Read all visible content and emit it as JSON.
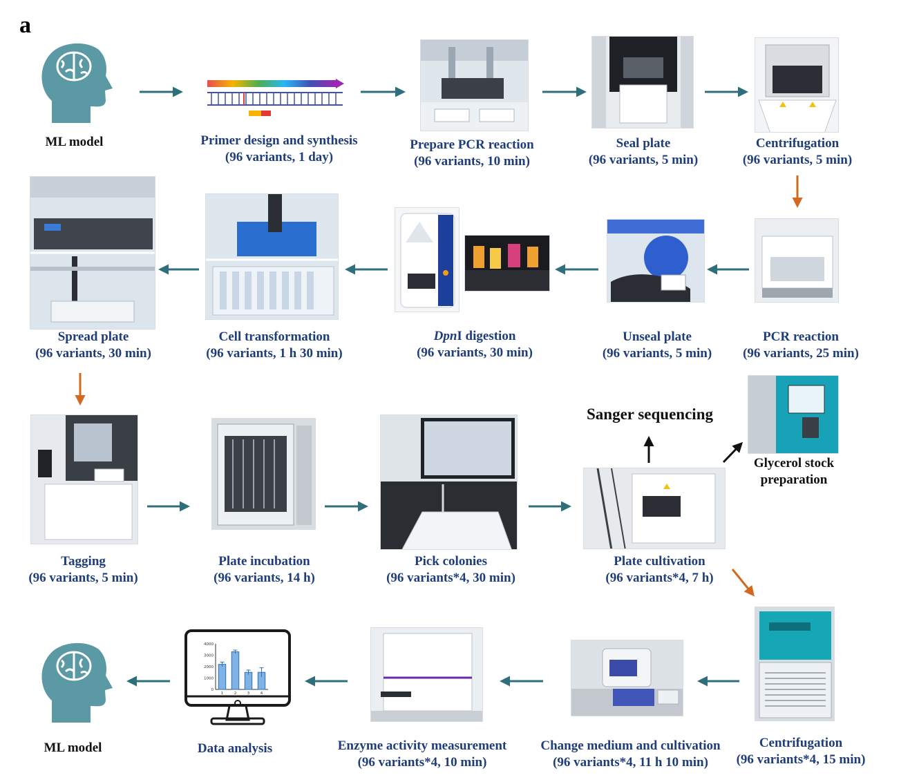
{
  "panel_label": "a",
  "colors": {
    "caption_blue": "#1f3d7a",
    "flow_arrow": "#2f6f7b",
    "turn_arrow": "#d2691e",
    "head_teal": "#5b9aa5"
  },
  "steps": {
    "ml_start": {
      "title": "ML model",
      "icon": "head-brain-icon"
    },
    "primer": {
      "title": "Primer design and synthesis",
      "detail": "(96 variants, 1 day)",
      "icon": "dna-primer-icon"
    },
    "prepare_pcr": {
      "title": "Prepare PCR reaction",
      "detail": "(96 variants, 10 min)"
    },
    "seal": {
      "title": "Seal plate",
      "detail": "(96 variants, 5 min)"
    },
    "centrifuge1": {
      "title": "Centrifugation",
      "detail": "(96 variants, 5 min)"
    },
    "pcr": {
      "title": "PCR reaction",
      "detail": "(96 variants, 25 min)"
    },
    "unseal": {
      "title": "Unseal plate",
      "detail": "(96 variants, 5 min)"
    },
    "dpni": {
      "title_italic": "Dpn",
      "title_rest": "I digestion",
      "detail": "(96 variants, 30 min)"
    },
    "transform": {
      "title": "Cell transformation",
      "detail": "(96 variants, 1 h 30 min)"
    },
    "spread": {
      "title": "Spread plate",
      "detail": "(96 variants, 30 min)"
    },
    "tagging": {
      "title": "Tagging",
      "detail": "(96 variants, 5 min)"
    },
    "incubation": {
      "title": "Plate incubation",
      "detail": "(96 variants, 14 h)"
    },
    "pick": {
      "title": "Pick colonies",
      "detail": "(96 variants*4, 30 min)"
    },
    "cultivation": {
      "title": "Plate cultivation",
      "detail": "(96 variants*4, 7 h)"
    },
    "sanger": {
      "title": "Sanger sequencing"
    },
    "glycerol": {
      "title": "Glycerol stock",
      "title2": "preparation"
    },
    "centrifuge2": {
      "title": "Centrifugation",
      "detail": "(96 variants*4, 15 min)"
    },
    "medium": {
      "title": "Change medium and cultivation",
      "detail": "(96 variants*4, 11 h 10 min)"
    },
    "enzyme": {
      "title": "Enzyme activity measurement",
      "detail": "(96 variants*4, 10 min)"
    },
    "data": {
      "title": "Data analysis",
      "icon": "monitor-bar-chart-icon"
    },
    "ml_end": {
      "title": "ML model",
      "icon": "head-brain-icon"
    }
  },
  "mini_chart": {
    "type": "bar",
    "categories": [
      "1",
      "2",
      "3",
      "4"
    ],
    "values": [
      2200,
      3300,
      1500,
      1500
    ],
    "errors": [
      200,
      150,
      200,
      400
    ],
    "ylim": [
      0,
      4000
    ],
    "yticks": [
      "0",
      "1000",
      "2000",
      "3000",
      "4000"
    ]
  }
}
